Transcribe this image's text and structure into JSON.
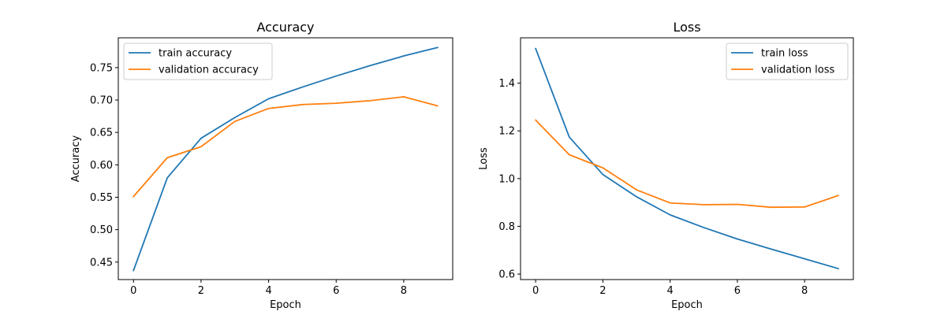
{
  "chart_data": [
    {
      "type": "line",
      "title": "Accuracy",
      "xlabel": "Epoch",
      "ylabel": "Accuracy",
      "x": [
        0,
        1,
        2,
        3,
        4,
        5,
        6,
        7,
        8,
        9
      ],
      "xlim": [
        -0.45,
        9.45
      ],
      "ylim": [
        0.423,
        0.796
      ],
      "xticks": [
        0,
        2,
        4,
        6,
        8
      ],
      "yticks": [
        0.45,
        0.5,
        0.55,
        0.6,
        0.65,
        0.7,
        0.75
      ],
      "ytick_decimals": 2,
      "legend": "upper-left",
      "grid": false,
      "series": [
        {
          "name": "train accuracy",
          "color": "#1f77b4",
          "values": [
            0.437,
            0.58,
            0.641,
            0.673,
            0.702,
            0.72,
            0.737,
            0.753,
            0.768,
            0.781
          ]
        },
        {
          "name": "validation accuracy",
          "color": "#ff7f0e",
          "values": [
            0.551,
            0.611,
            0.628,
            0.667,
            0.687,
            0.693,
            0.695,
            0.699,
            0.705,
            0.691
          ]
        }
      ]
    },
    {
      "type": "line",
      "title": "Loss",
      "xlabel": "Epoch",
      "ylabel": "Loss",
      "x": [
        0,
        1,
        2,
        3,
        4,
        5,
        6,
        7,
        8,
        9
      ],
      "xlim": [
        -0.45,
        9.45
      ],
      "ylim": [
        0.577,
        1.59
      ],
      "xticks": [
        0,
        2,
        4,
        6,
        8
      ],
      "yticks": [
        0.6,
        0.8,
        1.0,
        1.2,
        1.4
      ],
      "ytick_decimals": 1,
      "legend": "upper-right",
      "grid": false,
      "series": [
        {
          "name": "train loss",
          "color": "#1f77b4",
          "values": [
            1.545,
            1.174,
            1.017,
            0.924,
            0.848,
            0.795,
            0.747,
            0.705,
            0.664,
            0.623
          ]
        },
        {
          "name": "validation loss",
          "color": "#ff7f0e",
          "values": [
            1.245,
            1.1,
            1.045,
            0.953,
            0.898,
            0.891,
            0.892,
            0.88,
            0.881,
            0.929
          ]
        }
      ]
    }
  ]
}
